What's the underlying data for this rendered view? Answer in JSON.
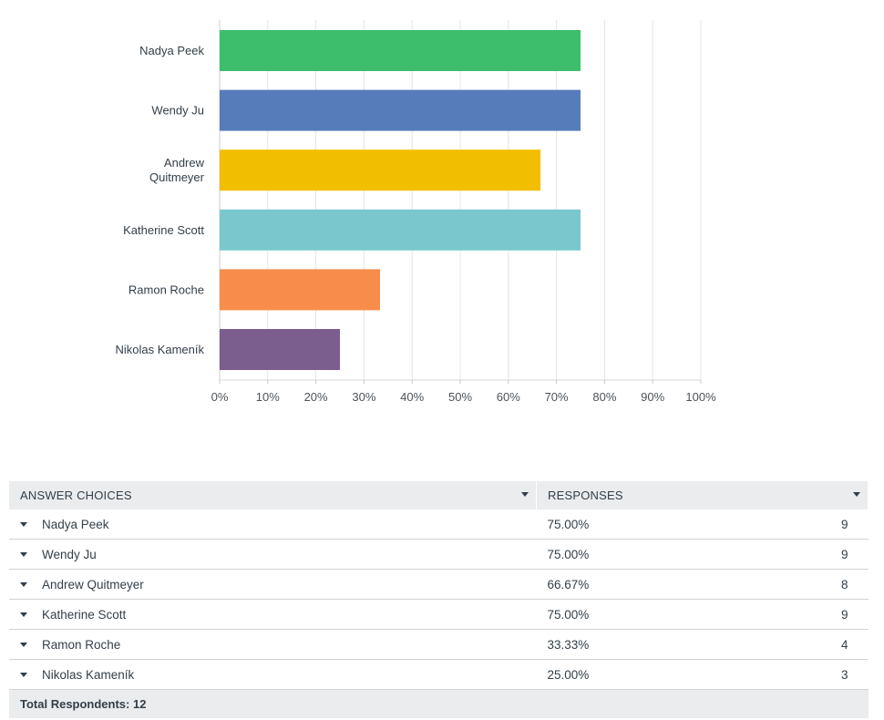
{
  "chart_data": {
    "type": "bar",
    "orientation": "horizontal",
    "categories": [
      "Nadya Peek",
      "Wendy Ju",
      "Andrew Quitmeyer",
      "Katherine Scott",
      "Ramon Roche",
      "Nikolas Kameník"
    ],
    "category_lines": [
      [
        "Nadya Peek"
      ],
      [
        "Wendy Ju"
      ],
      [
        "Andrew",
        "Quitmeyer"
      ],
      [
        "Katherine Scott"
      ],
      [
        "Ramon Roche"
      ],
      [
        "Nikolas Kameník"
      ]
    ],
    "values": [
      75.0,
      75.0,
      66.67,
      75.0,
      33.33,
      25.0
    ],
    "colors": [
      "#3dbe6c",
      "#577cba",
      "#f2be00",
      "#7ac8cd",
      "#f78d4b",
      "#7b5d8e"
    ],
    "xlim": [
      0,
      100
    ],
    "ticks": [
      0,
      10,
      20,
      30,
      40,
      50,
      60,
      70,
      80,
      90,
      100
    ],
    "tick_labels": [
      "0%",
      "10%",
      "20%",
      "30%",
      "40%",
      "50%",
      "60%",
      "70%",
      "80%",
      "90%",
      "100%"
    ],
    "grid": true,
    "title": "",
    "xlabel": "",
    "ylabel": ""
  },
  "table": {
    "headers": {
      "choices": "ANSWER CHOICES",
      "responses": "RESPONSES"
    },
    "rows": [
      {
        "choice": "Nadya Peek",
        "percent": "75.00%",
        "count": "9"
      },
      {
        "choice": "Wendy Ju",
        "percent": "75.00%",
        "count": "9"
      },
      {
        "choice": "Andrew Quitmeyer",
        "percent": "66.67%",
        "count": "8"
      },
      {
        "choice": "Katherine Scott",
        "percent": "75.00%",
        "count": "9"
      },
      {
        "choice": "Ramon Roche",
        "percent": "33.33%",
        "count": "4"
      },
      {
        "choice": "Nikolas Kameník",
        "percent": "25.00%",
        "count": "3"
      }
    ],
    "total_label": "Total Respondents: 12"
  }
}
